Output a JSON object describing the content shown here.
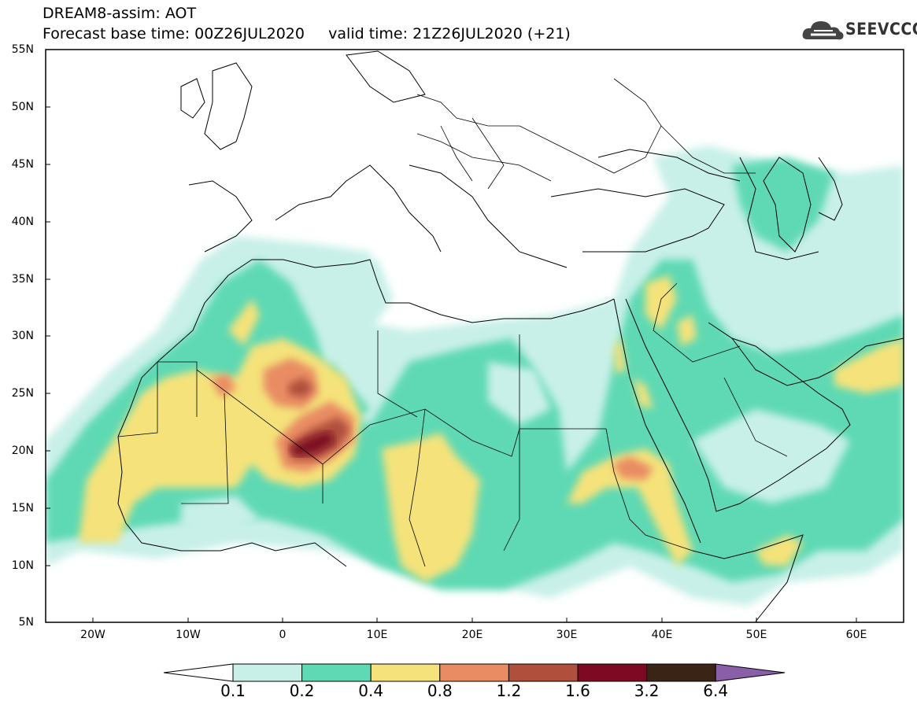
{
  "title": {
    "line1": "DREAM8-assim: AOT",
    "line2": "Forecast base time: 00Z26JUL2020     valid time: 21Z26JUL2020 (+21)"
  },
  "logo": {
    "text": "SEEVCCC",
    "icon": "cloud-icon"
  },
  "map": {
    "lat_labels": [
      "55N",
      "50N",
      "45N",
      "40N",
      "35N",
      "30N",
      "25N",
      "20N",
      "15N",
      "10N",
      "5N"
    ],
    "lon_labels": [
      "20W",
      "10W",
      "0",
      "10E",
      "20E",
      "30E",
      "40E",
      "50E",
      "60E"
    ],
    "lat_range": [
      5,
      55
    ],
    "lon_range": [
      -25,
      65
    ]
  },
  "colorbar": {
    "labels": [
      "0.1",
      "0.2",
      "0.4",
      "0.8",
      "1.2",
      "1.6",
      "3.2",
      "6.4"
    ],
    "colors": {
      "below_min": "#ffffff",
      "0.1-0.2": "#c8f0e8",
      "0.2-0.4": "#5fd9b4",
      "0.4-0.8": "#f5e27a",
      "0.8-1.2": "#e98c64",
      "1.2-1.6": "#b0503c",
      "1.6-3.2": "#7d0a22",
      "3.2-6.4": "#3a2416",
      "above_max": "#8a5fa8"
    }
  }
}
